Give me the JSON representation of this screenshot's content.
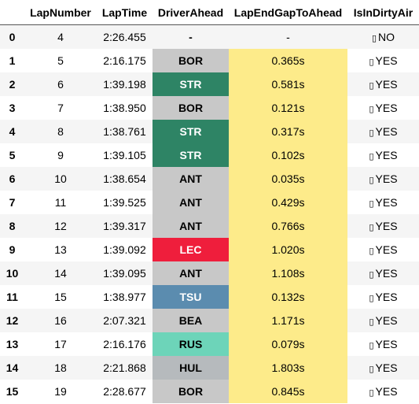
{
  "columns": [
    "",
    "LapNumber",
    "LapTime",
    "DriverAhead",
    "LapEndGapToAhead",
    "IsInDirtyAir"
  ],
  "colors": {
    "gap_fill": "#fdeb8a",
    "BOR": "#c8c8c8",
    "STR": "#2e8465",
    "ANT": "#c8c8c8",
    "LEC": "#ef1e3c",
    "TSU": "#5b8caf",
    "BEA": "#c8c8c8",
    "RUS": "#6dd4b9",
    "HUL": "#b6babd"
  },
  "rows": [
    {
      "idx": "0",
      "lap": "4",
      "time": "2:26.455",
      "driver": "-",
      "gap": "-",
      "dirty_icon": "missing-glyph-icon",
      "dirty": "NO"
    },
    {
      "idx": "1",
      "lap": "5",
      "time": "2:16.175",
      "driver": "BOR",
      "gap": "0.365s",
      "dirty_icon": "missing-glyph-icon",
      "dirty": "YES"
    },
    {
      "idx": "2",
      "lap": "6",
      "time": "1:39.198",
      "driver": "STR",
      "gap": "0.581s",
      "dirty_icon": "missing-glyph-icon",
      "dirty": "YES"
    },
    {
      "idx": "3",
      "lap": "7",
      "time": "1:38.950",
      "driver": "BOR",
      "gap": "0.121s",
      "dirty_icon": "missing-glyph-icon",
      "dirty": "YES"
    },
    {
      "idx": "4",
      "lap": "8",
      "time": "1:38.761",
      "driver": "STR",
      "gap": "0.317s",
      "dirty_icon": "missing-glyph-icon",
      "dirty": "YES"
    },
    {
      "idx": "5",
      "lap": "9",
      "time": "1:39.105",
      "driver": "STR",
      "gap": "0.102s",
      "dirty_icon": "missing-glyph-icon",
      "dirty": "YES"
    },
    {
      "idx": "6",
      "lap": "10",
      "time": "1:38.654",
      "driver": "ANT",
      "gap": "0.035s",
      "dirty_icon": "missing-glyph-icon",
      "dirty": "YES"
    },
    {
      "idx": "7",
      "lap": "11",
      "time": "1:39.525",
      "driver": "ANT",
      "gap": "0.429s",
      "dirty_icon": "missing-glyph-icon",
      "dirty": "YES"
    },
    {
      "idx": "8",
      "lap": "12",
      "time": "1:39.317",
      "driver": "ANT",
      "gap": "0.766s",
      "dirty_icon": "missing-glyph-icon",
      "dirty": "YES"
    },
    {
      "idx": "9",
      "lap": "13",
      "time": "1:39.092",
      "driver": "LEC",
      "gap": "1.020s",
      "dirty_icon": "missing-glyph-icon",
      "dirty": "YES"
    },
    {
      "idx": "10",
      "lap": "14",
      "time": "1:39.095",
      "driver": "ANT",
      "gap": "1.108s",
      "dirty_icon": "missing-glyph-icon",
      "dirty": "YES"
    },
    {
      "idx": "11",
      "lap": "15",
      "time": "1:38.977",
      "driver": "TSU",
      "gap": "0.132s",
      "dirty_icon": "missing-glyph-icon",
      "dirty": "YES"
    },
    {
      "idx": "12",
      "lap": "16",
      "time": "2:07.321",
      "driver": "BEA",
      "gap": "1.171s",
      "dirty_icon": "missing-glyph-icon",
      "dirty": "YES"
    },
    {
      "idx": "13",
      "lap": "17",
      "time": "2:16.176",
      "driver": "RUS",
      "gap": "0.079s",
      "dirty_icon": "missing-glyph-icon",
      "dirty": "YES"
    },
    {
      "idx": "14",
      "lap": "18",
      "time": "2:21.868",
      "driver": "HUL",
      "gap": "1.803s",
      "dirty_icon": "missing-glyph-icon",
      "dirty": "YES"
    },
    {
      "idx": "15",
      "lap": "19",
      "time": "2:28.677",
      "driver": "BOR",
      "gap": "0.845s",
      "dirty_icon": "missing-glyph-icon",
      "dirty": "YES"
    }
  ]
}
